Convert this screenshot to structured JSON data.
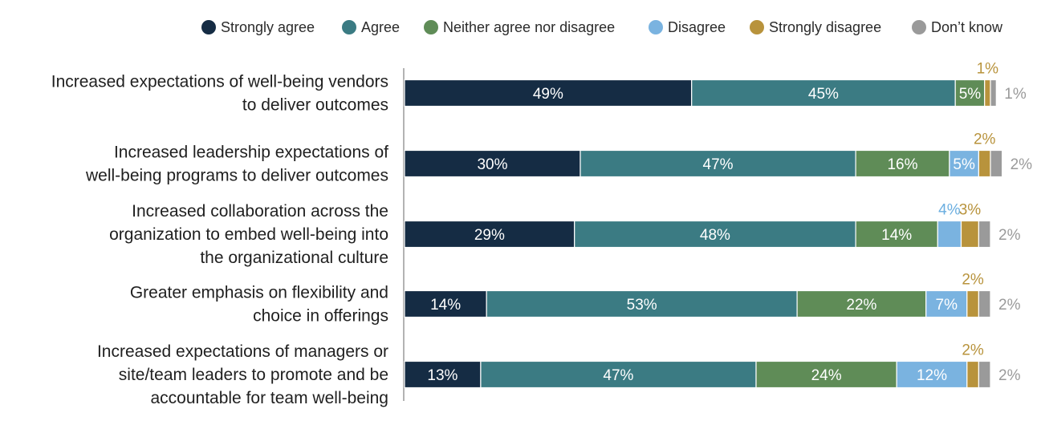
{
  "chart_data": {
    "type": "bar",
    "orientation": "horizontal",
    "stacked": true,
    "legend_position": "top",
    "xlim": [
      0,
      100
    ],
    "categories": [
      [
        "Increased expectations of well-being vendors",
        "to deliver outcomes"
      ],
      [
        "Increased leadership expectations of",
        "well-being programs to deliver outcomes"
      ],
      [
        "Increased collaboration across the",
        "organization to embed well-being into",
        "the organizational culture"
      ],
      [
        "Greater emphasis on flexibility and",
        "choice in offerings"
      ],
      [
        "Increased expectations of managers or",
        "site/team leaders to promote and be",
        "accountable for team well-being"
      ]
    ],
    "series": [
      {
        "name": "Strongly agree",
        "color": "#152c44",
        "values": [
          49,
          30,
          29,
          14,
          13
        ],
        "labels": [
          "49%",
          "30%",
          "29%",
          "14%",
          "13%"
        ]
      },
      {
        "name": "Agree",
        "color": "#3b7b83",
        "values": [
          45,
          47,
          48,
          53,
          47
        ],
        "labels": [
          "45%",
          "47%",
          "48%",
          "53%",
          "47%"
        ]
      },
      {
        "name": "Neither agree nor disagree",
        "color": "#5f8c57",
        "values": [
          5,
          16,
          14,
          22,
          24
        ],
        "labels": [
          "5%",
          "16%",
          "14%",
          "22%",
          "24%"
        ]
      },
      {
        "name": "Disagree",
        "color": "#7ab3e0",
        "values": [
          0,
          5,
          4,
          7,
          12
        ],
        "labels": [
          "",
          "5%",
          "4%",
          "7%",
          "12%"
        ]
      },
      {
        "name": "Strongly disagree",
        "color": "#b8933c",
        "values": [
          1,
          2,
          3,
          2,
          2
        ],
        "labels": [
          "1%",
          "2%",
          "3%",
          "2%",
          "2%"
        ]
      },
      {
        "name": "Don’t know",
        "color": "#9a9a9a",
        "values": [
          1,
          2,
          2,
          2,
          2
        ],
        "labels": [
          "1%",
          "2%",
          "2%",
          "2%",
          "2%"
        ]
      }
    ]
  }
}
